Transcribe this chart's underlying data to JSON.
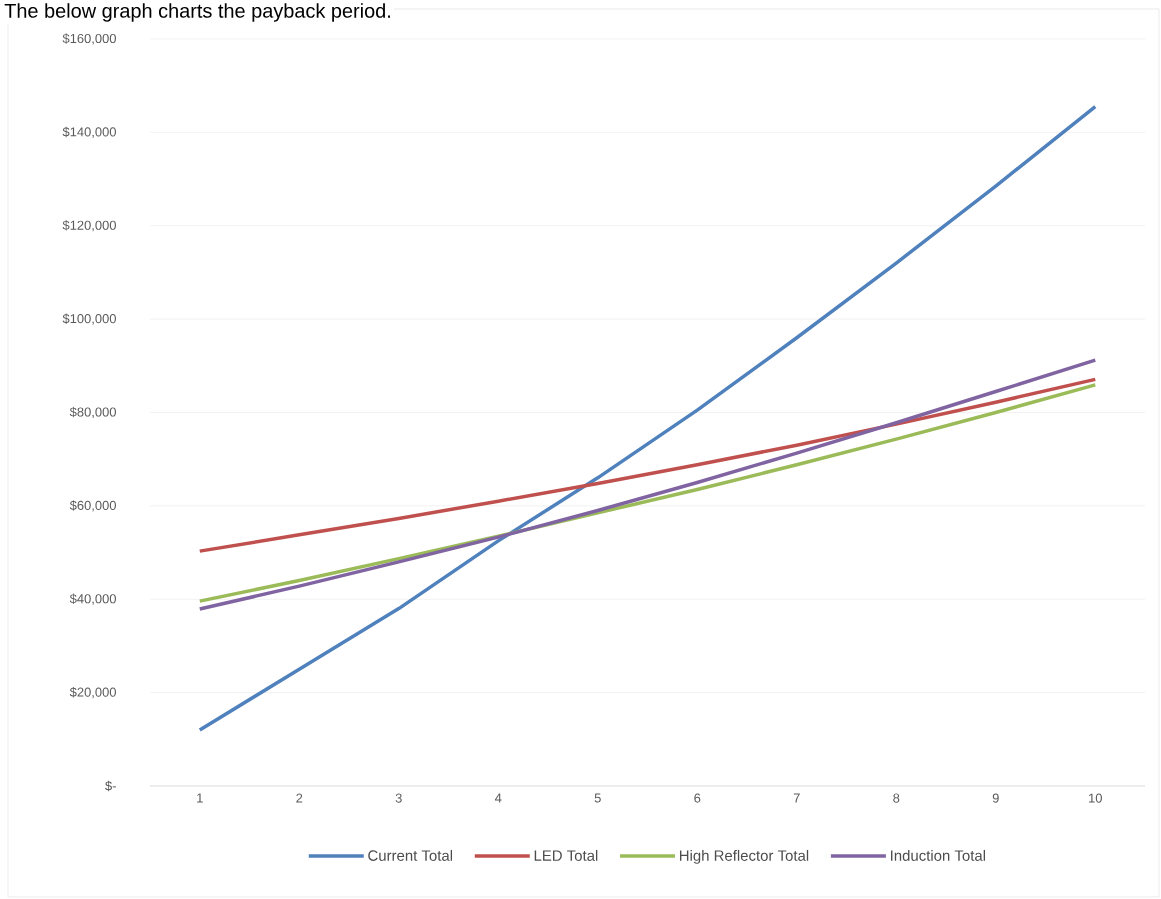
{
  "chart_data": {
    "type": "line",
    "title": "The below graph charts the payback period.",
    "categories": [
      "1",
      "2",
      "3",
      "4",
      "5",
      "6",
      "7",
      "8",
      "9",
      "10"
    ],
    "series": [
      {
        "name": "Current Total",
        "color": "#4f81bd",
        "values": [
          12000,
          25000,
          38000,
          52500,
          66000,
          80500,
          96000,
          112000,
          128500,
          145500
        ]
      },
      {
        "name": "LED Total",
        "color": "#c0504d",
        "values": [
          50300,
          53800,
          57300,
          61000,
          64800,
          68800,
          73000,
          77500,
          82200,
          87100
        ]
      },
      {
        "name": "High Reflector Total",
        "color": "#9bbb59",
        "values": [
          39600,
          44000,
          48700,
          53500,
          58500,
          63500,
          68800,
          74300,
          80000,
          85900
        ]
      },
      {
        "name": "Induction Total",
        "color": "#8064a2",
        "values": [
          37900,
          42800,
          48000,
          53300,
          59000,
          65000,
          71300,
          77800,
          84500,
          91200
        ]
      }
    ],
    "ylim": [
      0,
      160000
    ],
    "yticks": [
      {
        "value": 0,
        "label": "$-"
      },
      {
        "value": 20000,
        "label": "$20,000"
      },
      {
        "value": 40000,
        "label": "$40,000"
      },
      {
        "value": 60000,
        "label": "$60,000"
      },
      {
        "value": 80000,
        "label": "$80,000"
      },
      {
        "value": 100000,
        "label": "$100,000"
      },
      {
        "value": 120000,
        "label": "$120,000"
      },
      {
        "value": 140000,
        "label": "$140,000"
      },
      {
        "value": 160000,
        "label": "$160,000"
      }
    ],
    "grid": "y",
    "legend": "bottom",
    "marker": "none",
    "line_style": "solid"
  }
}
